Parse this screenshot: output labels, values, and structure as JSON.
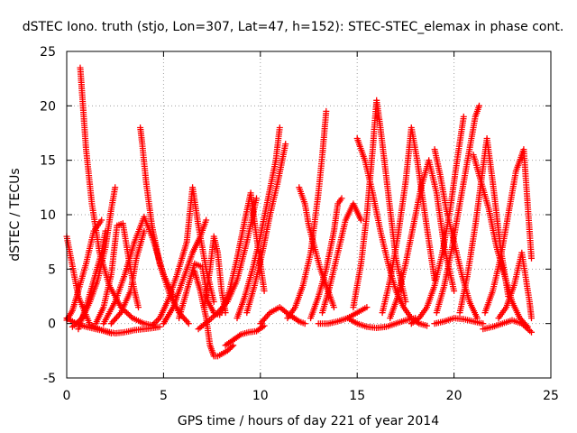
{
  "chart_data": {
    "type": "scatter",
    "title": "dSTEC Iono. truth (stjo, Lon=307, Lat=47, h=152): STEC-STEC_elemax in phase cont.",
    "xlabel": "GPS time / hours of day 221 of year 2014",
    "ylabel": "dSTEC  / TECUs",
    "xlim": [
      0,
      25
    ],
    "ylim": [
      -5,
      25
    ],
    "xticks": [
      0,
      5,
      10,
      15,
      20,
      25
    ],
    "yticks": [
      -5,
      0,
      5,
      10,
      15,
      20,
      25
    ],
    "grid": true,
    "marker": "plus",
    "color": "#ff0000",
    "series": [
      {
        "x": [
          0.0,
          0.6,
          1.2,
          1.8,
          2.3
        ],
        "y": [
          8.0,
          2.5,
          -0.1,
          -0.6,
          -0.9
        ]
      },
      {
        "x": [
          0.0,
          0.5,
          1.0,
          1.5,
          2.0,
          2.5,
          3.0,
          3.5,
          4.0,
          4.5,
          4.8
        ],
        "y": [
          0.5,
          0.0,
          -0.3,
          -0.5,
          -0.7,
          -0.9,
          -0.8,
          -0.6,
          -0.5,
          -0.4,
          -0.3
        ]
      },
      {
        "x": [
          0.0,
          0.3,
          0.6,
          1.0,
          1.4,
          1.8
        ],
        "y": [
          0.3,
          1.2,
          3.0,
          5.5,
          8.5,
          9.5
        ]
      },
      {
        "x": [
          0.7,
          0.8,
          1.0,
          1.3,
          1.7,
          2.2,
          2.8,
          3.4,
          4.0,
          4.5
        ],
        "y": [
          23.5,
          21.0,
          16.0,
          11.0,
          6.5,
          3.5,
          1.5,
          0.5,
          0.0,
          -0.2
        ]
      },
      {
        "x": [
          0.3,
          0.8,
          1.2,
          1.6,
          2.0,
          2.3,
          2.5
        ],
        "y": [
          -0.3,
          0.5,
          2.0,
          4.0,
          7.0,
          10.5,
          12.5
        ]
      },
      {
        "x": [
          0.6,
          1.0,
          1.4,
          1.8,
          2.0
        ],
        "y": [
          -0.5,
          1.5,
          4.0,
          6.5,
          8.5
        ]
      },
      {
        "x": [
          1.5,
          1.9,
          2.3,
          2.6,
          2.9,
          3.2,
          3.5,
          3.7
        ],
        "y": [
          0.0,
          1.5,
          4.5,
          9.0,
          9.2,
          6.0,
          3.0,
          1.5
        ]
      },
      {
        "x": [
          1.9,
          2.5,
          3.0,
          3.5,
          4.0,
          4.5,
          5.0,
          5.5
        ],
        "y": [
          0.0,
          2.0,
          4.5,
          7.5,
          9.8,
          7.5,
          4.5,
          2.5
        ]
      },
      {
        "x": [
          3.8,
          3.9,
          4.1,
          4.4,
          4.8,
          5.3,
          5.8,
          6.3
        ],
        "y": [
          18.0,
          16.5,
          13.0,
          9.0,
          5.5,
          2.8,
          1.0,
          0.0
        ]
      },
      {
        "x": [
          2.3,
          2.8,
          3.3,
          3.6,
          4.0
        ],
        "y": [
          0.0,
          1.0,
          3.0,
          6.0,
          8.5
        ]
      },
      {
        "x": [
          4.4,
          4.8,
          5.2,
          5.7,
          6.2,
          6.5,
          6.8,
          7.2,
          7.6
        ],
        "y": [
          -0.2,
          0.5,
          2.0,
          4.5,
          7.5,
          12.5,
          9.0,
          5.0,
          2.0
        ]
      },
      {
        "x": [
          5.0,
          5.5,
          5.9,
          6.2,
          6.5,
          6.9,
          7.2
        ],
        "y": [
          0.0,
          1.5,
          3.5,
          5.0,
          6.5,
          8.0,
          9.5
        ]
      },
      {
        "x": [
          5.8,
          6.2,
          6.6,
          7.0,
          7.3,
          7.6,
          7.9
        ],
        "y": [
          0.5,
          3.0,
          5.5,
          5.2,
          2.0,
          1.0,
          0.8
        ]
      },
      {
        "x": [
          6.6,
          6.9,
          7.2,
          7.4,
          7.6,
          7.8,
          8.0,
          8.3,
          8.6
        ],
        "y": [
          4.8,
          3.0,
          0.5,
          -2.0,
          -3.0,
          -3.0,
          -2.8,
          -2.5,
          -2.0
        ]
      },
      {
        "x": [
          7.1,
          7.4,
          7.6,
          7.8,
          8.0,
          8.2
        ],
        "y": [
          1.5,
          5.0,
          8.0,
          6.5,
          3.0,
          1.0
        ]
      },
      {
        "x": [
          6.8,
          7.3,
          7.8,
          8.3,
          8.8,
          9.3,
          9.8
        ],
        "y": [
          -0.5,
          0.2,
          1.0,
          2.0,
          4.0,
          7.5,
          11.5
        ]
      },
      {
        "x": [
          8.2,
          8.6,
          9.0,
          9.4,
          9.8,
          10.2
        ],
        "y": [
          -2.0,
          -1.5,
          -1.0,
          -0.8,
          -0.7,
          -0.2
        ]
      },
      {
        "x": [
          8.0,
          8.4,
          8.8,
          9.2,
          9.5,
          9.8,
          10.2
        ],
        "y": [
          1.0,
          3.0,
          6.0,
          9.5,
          12.0,
          8.0,
          3.0
        ]
      },
      {
        "x": [
          8.8,
          9.2,
          9.6,
          10.0,
          10.4,
          10.8,
          11.0
        ],
        "y": [
          0.5,
          2.5,
          5.0,
          8.0,
          11.5,
          15.0,
          18.0
        ]
      },
      {
        "x": [
          9.3,
          9.7,
          10.1,
          10.5,
          10.9,
          11.3
        ],
        "y": [
          1.0,
          3.5,
          6.5,
          10.0,
          13.0,
          16.5
        ]
      },
      {
        "x": [
          10.0,
          10.5,
          11.0,
          11.5,
          12.0,
          12.3
        ],
        "y": [
          0.0,
          1.0,
          1.5,
          0.8,
          0.2,
          0.0
        ]
      },
      {
        "x": [
          11.4,
          11.8,
          12.2,
          12.6,
          13.0,
          13.2,
          13.4
        ],
        "y": [
          0.5,
          1.5,
          3.5,
          6.5,
          12.0,
          15.5,
          19.5
        ]
      },
      {
        "x": [
          12.0,
          12.3,
          12.5,
          12.8,
          13.1,
          13.5,
          13.8
        ],
        "y": [
          12.5,
          11.0,
          9.0,
          7.0,
          5.0,
          3.0,
          1.5
        ]
      },
      {
        "x": [
          12.6,
          13.0,
          13.4,
          13.8,
          14.0,
          14.2
        ],
        "y": [
          0.5,
          2.5,
          5.0,
          8.5,
          11.0,
          11.5
        ]
      },
      {
        "x": [
          13.2,
          13.6,
          14.0,
          14.4,
          14.8,
          15.2
        ],
        "y": [
          1.0,
          3.5,
          6.5,
          9.5,
          11.0,
          9.5
        ]
      },
      {
        "x": [
          13.0,
          13.5,
          14.0,
          14.5,
          15.0,
          15.5
        ],
        "y": [
          0.0,
          0.0,
          0.2,
          0.5,
          1.0,
          1.5
        ]
      },
      {
        "x": [
          14.8,
          15.2,
          15.5,
          15.8,
          16.0,
          16.2,
          16.6,
          17.0,
          17.5
        ],
        "y": [
          1.5,
          5.5,
          10.0,
          16.0,
          20.5,
          18.0,
          12.0,
          6.0,
          2.0
        ]
      },
      {
        "x": [
          15.0,
          15.4,
          15.8,
          16.2,
          16.6,
          17.0,
          17.4,
          17.8,
          18.2,
          18.6
        ],
        "y": [
          17.0,
          15.0,
          12.0,
          8.5,
          5.5,
          3.0,
          1.5,
          0.5,
          0.0,
          -0.2
        ]
      },
      {
        "x": [
          16.3,
          16.7,
          17.1,
          17.5,
          17.8,
          18.1,
          18.5,
          19.0
        ],
        "y": [
          1.0,
          4.0,
          8.0,
          13.0,
          18.0,
          15.0,
          10.0,
          4.0
        ]
      },
      {
        "x": [
          16.7,
          17.1,
          17.5,
          17.9,
          18.3,
          18.7,
          19.1,
          19.5,
          20.0
        ],
        "y": [
          0.5,
          2.5,
          5.5,
          9.0,
          12.5,
          15.0,
          12.0,
          7.0,
          3.0
        ]
      },
      {
        "x": [
          17.8,
          18.2,
          18.6,
          19.0,
          19.4,
          19.8,
          20.2,
          20.5
        ],
        "y": [
          0.0,
          0.5,
          1.5,
          3.5,
          6.5,
          10.5,
          15.5,
          19.0
        ]
      },
      {
        "x": [
          19.1,
          19.5,
          19.9,
          20.3,
          20.7,
          21.1,
          21.3
        ],
        "y": [
          1.0,
          3.5,
          7.0,
          11.0,
          15.0,
          19.0,
          20.0
        ]
      },
      {
        "x": [
          19.0,
          19.3,
          19.6,
          20.0,
          20.4,
          20.8,
          21.2
        ],
        "y": [
          16.0,
          13.5,
          10.5,
          7.5,
          4.5,
          2.0,
          0.5
        ]
      },
      {
        "x": [
          20.3,
          20.7,
          21.1,
          21.4,
          21.7,
          22.0,
          22.4,
          22.8
        ],
        "y": [
          1.0,
          4.5,
          9.0,
          13.0,
          17.0,
          13.0,
          7.0,
          2.5
        ]
      },
      {
        "x": [
          21.0,
          21.4,
          21.8,
          22.2,
          22.6,
          23.0,
          23.4,
          23.8
        ],
        "y": [
          15.5,
          13.0,
          10.5,
          7.0,
          4.5,
          2.0,
          0.5,
          -0.3
        ]
      },
      {
        "x": [
          21.6,
          22.0,
          22.4,
          22.8,
          23.2,
          23.6,
          24.0
        ],
        "y": [
          1.0,
          3.0,
          6.0,
          10.0,
          14.0,
          16.0,
          6.0
        ]
      },
      {
        "x": [
          22.3,
          22.7,
          23.1,
          23.5,
          23.9,
          24.0
        ],
        "y": [
          0.5,
          1.5,
          3.5,
          6.5,
          2.0,
          0.5
        ]
      },
      {
        "x": [
          21.5,
          22.0,
          22.5,
          23.0,
          23.5,
          24.0
        ],
        "y": [
          -0.5,
          -0.3,
          0.0,
          0.3,
          0.0,
          -0.8
        ]
      },
      {
        "x": [
          19.0,
          19.5,
          20.0,
          20.5,
          21.0,
          21.5
        ],
        "y": [
          0.0,
          0.2,
          0.5,
          0.4,
          0.2,
          0.0
        ]
      },
      {
        "x": [
          14.5,
          15.0,
          15.5,
          16.0,
          16.5,
          17.0,
          17.5,
          18.0
        ],
        "y": [
          0.5,
          0.0,
          -0.3,
          -0.4,
          -0.3,
          0.0,
          0.3,
          0.5
        ]
      }
    ]
  }
}
